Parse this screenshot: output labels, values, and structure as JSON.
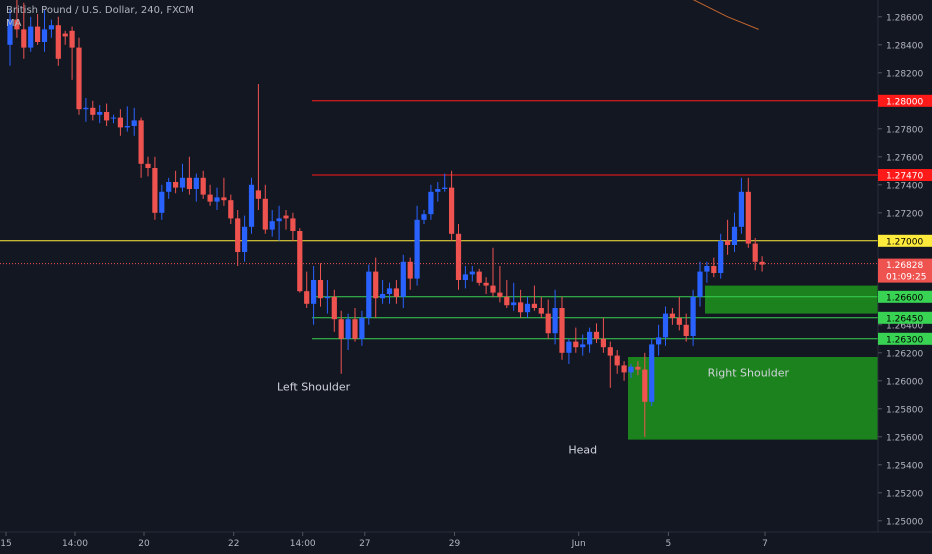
{
  "header": {
    "symbol_title": "British Pound / U.S. Dollar, 240, FXCM",
    "indicator": "MA"
  },
  "colors": {
    "background": "#131722",
    "up": "#2962ff",
    "down": "#ef5350",
    "resistance": "#ff1a1a",
    "pivot": "#ffeb3b",
    "support": "#39d353",
    "zone": "#1e8e1e",
    "ma": "#c0642d",
    "price_badge": "#ef5350",
    "axis_text": "#b2b5be"
  },
  "chart_data": {
    "type": "candlestick",
    "title": "British Pound / U.S. Dollar, 240, FXCM",
    "ylim": [
      1.2492,
      1.2872
    ],
    "y_ticks": [
      "1.28600",
      "1.28400",
      "1.28200",
      "1.28000",
      "1.27800",
      "1.27600",
      "1.27400",
      "1.27200",
      "1.27000",
      "1.26800",
      "1.26600",
      "1.26450",
      "1.26400",
      "1.26300",
      "1.26200",
      "1.26000",
      "1.25800",
      "1.25600",
      "1.25400",
      "1.25200",
      "1.25000"
    ],
    "x_ticks": [
      "15",
      "14:00",
      "20",
      "22",
      "14:00",
      "27",
      "29",
      "Jun",
      "5",
      "7"
    ],
    "x_tick_bars": [
      0,
      10,
      20,
      33,
      43,
      52,
      65,
      83,
      96,
      110
    ],
    "bar_count": 111,
    "candles": [
      [
        1.284,
        1.2865,
        1.2825,
        1.2858
      ],
      [
        1.2858,
        1.2875,
        1.2845,
        1.2851
      ],
      [
        1.2851,
        1.287,
        1.283,
        1.2838
      ],
      [
        1.2838,
        1.286,
        1.2835,
        1.2853
      ],
      [
        1.2853,
        1.2862,
        1.284,
        1.2842
      ],
      [
        1.2842,
        1.2865,
        1.2835,
        1.2851
      ],
      [
        1.2851,
        1.2858,
        1.2845,
        1.2854
      ],
      [
        1.2854,
        1.286,
        1.2825,
        1.283
      ],
      [
        1.2848,
        1.285,
        1.284,
        1.2846
      ],
      [
        1.285,
        1.2853,
        1.2815,
        1.2838
      ],
      [
        1.2838,
        1.2845,
        1.279,
        1.2794
      ],
      [
        1.2794,
        1.2802,
        1.2785,
        1.2795
      ],
      [
        1.2795,
        1.28,
        1.2786,
        1.279
      ],
      [
        1.279,
        1.2797,
        1.2784,
        1.2792
      ],
      [
        1.2792,
        1.2798,
        1.2782,
        1.2786
      ],
      [
        1.2788,
        1.279,
        1.2784,
        1.2788
      ],
      [
        1.2788,
        1.2794,
        1.2775,
        1.2781
      ],
      [
        1.2781,
        1.2796,
        1.2778,
        1.2782
      ],
      [
        1.2782,
        1.2795,
        1.2775,
        1.2786
      ],
      [
        1.2786,
        1.2788,
        1.2745,
        1.2755
      ],
      [
        1.2755,
        1.276,
        1.2746,
        1.2752
      ],
      [
        1.2752,
        1.276,
        1.2715,
        1.272
      ],
      [
        1.272,
        1.274,
        1.2715,
        1.2735
      ],
      [
        1.2735,
        1.2745,
        1.273,
        1.2742
      ],
      [
        1.2742,
        1.275,
        1.2734,
        1.2738
      ],
      [
        1.2738,
        1.2755,
        1.2735,
        1.2745
      ],
      [
        1.2745,
        1.276,
        1.2733,
        1.2737
      ],
      [
        1.2737,
        1.2748,
        1.2728,
        1.2745
      ],
      [
        1.2745,
        1.275,
        1.273,
        1.2733
      ],
      [
        1.2733,
        1.274,
        1.2725,
        1.2728
      ],
      [
        1.2728,
        1.2738,
        1.2722,
        1.2731
      ],
      [
        1.2731,
        1.2745,
        1.2725,
        1.2729
      ],
      [
        1.2729,
        1.2733,
        1.2712,
        1.2716
      ],
      [
        1.2716,
        1.2722,
        1.2682,
        1.2692
      ],
      [
        1.2692,
        1.2718,
        1.2685,
        1.271
      ],
      [
        1.271,
        1.2745,
        1.2705,
        1.274
      ],
      [
        1.2736,
        1.2812,
        1.2722,
        1.273
      ],
      [
        1.273,
        1.274,
        1.2705,
        1.2708
      ],
      [
        1.2708,
        1.2722,
        1.2703,
        1.2714
      ],
      [
        1.2714,
        1.2725,
        1.27,
        1.2716
      ],
      [
        1.2718,
        1.2722,
        1.2708,
        1.2716
      ],
      [
        1.2716,
        1.272,
        1.27,
        1.2707
      ],
      [
        1.2707,
        1.2709,
        1.2663,
        1.2664
      ],
      [
        1.2664,
        1.2678,
        1.2652,
        1.2655
      ],
      [
        1.2655,
        1.2682,
        1.264,
        1.2672
      ],
      [
        1.2672,
        1.2684,
        1.2653,
        1.2659
      ],
      [
        1.2659,
        1.2672,
        1.2648,
        1.266
      ],
      [
        1.266,
        1.2665,
        1.2635,
        1.2644
      ],
      [
        1.2644,
        1.265,
        1.2605,
        1.263
      ],
      [
        1.263,
        1.2648,
        1.2622,
        1.2644
      ],
      [
        1.2644,
        1.2652,
        1.2628,
        1.263
      ],
      [
        1.263,
        1.265,
        1.2625,
        1.2645
      ],
      [
        1.2645,
        1.2683,
        1.264,
        1.2678
      ],
      [
        1.2678,
        1.2688,
        1.2645,
        1.2659
      ],
      [
        1.2659,
        1.2672,
        1.2655,
        1.2662
      ],
      [
        1.2662,
        1.267,
        1.2655,
        1.2666
      ],
      [
        1.2666,
        1.2672,
        1.2655,
        1.266
      ],
      [
        1.266,
        1.269,
        1.2652,
        1.2685
      ],
      [
        1.2685,
        1.2688,
        1.2665,
        1.2673
      ],
      [
        1.2673,
        1.2725,
        1.2668,
        1.2715
      ],
      [
        1.2715,
        1.2722,
        1.2712,
        1.2719
      ],
      [
        1.2719,
        1.274,
        1.2715,
        1.2735
      ],
      [
        1.2735,
        1.2742,
        1.2728,
        1.2737
      ],
      [
        1.2737,
        1.2748,
        1.2735,
        1.2738
      ],
      [
        1.2738,
        1.275,
        1.27,
        1.2705
      ],
      [
        1.2705,
        1.2712,
        1.2665,
        1.2672
      ],
      [
        1.2672,
        1.2682,
        1.2666,
        1.2676
      ],
      [
        1.2676,
        1.2682,
        1.2671,
        1.2678
      ],
      [
        1.2678,
        1.268,
        1.2668,
        1.267
      ],
      [
        1.267,
        1.2674,
        1.2662,
        1.2668
      ],
      [
        1.2668,
        1.2695,
        1.266,
        1.2663
      ],
      [
        1.2663,
        1.2682,
        1.2656,
        1.266
      ],
      [
        1.266,
        1.2672,
        1.2652,
        1.2654
      ],
      [
        1.2654,
        1.267,
        1.265,
        1.2656
      ],
      [
        1.2656,
        1.2665,
        1.2645,
        1.2649
      ],
      [
        1.2649,
        1.266,
        1.2645,
        1.2655
      ],
      [
        1.2655,
        1.2668,
        1.265,
        1.2652
      ],
      [
        1.2652,
        1.266,
        1.2645,
        1.2648
      ],
      [
        1.2648,
        1.2658,
        1.263,
        1.2634
      ],
      [
        1.2634,
        1.2665,
        1.2626,
        1.2652
      ],
      [
        1.2652,
        1.266,
        1.2615,
        1.262
      ],
      [
        1.262,
        1.263,
        1.2612,
        1.2628
      ],
      [
        1.2628,
        1.2638,
        1.262,
        1.2624
      ],
      [
        1.2624,
        1.2633,
        1.2618,
        1.2626
      ],
      [
        1.2626,
        1.2638,
        1.262,
        1.2635
      ],
      [
        1.2635,
        1.2641,
        1.2627,
        1.263
      ],
      [
        1.263,
        1.2645,
        1.262,
        1.2624
      ],
      [
        1.2624,
        1.2628,
        1.2595,
        1.2618
      ],
      [
        1.2618,
        1.2622,
        1.2605,
        1.2611
      ],
      [
        1.2611,
        1.2614,
        1.26,
        1.2606
      ],
      [
        1.2606,
        1.2612,
        1.2602,
        1.261
      ],
      [
        1.261,
        1.2614,
        1.2604,
        1.2608
      ],
      [
        1.2608,
        1.262,
        1.256,
        1.2585
      ],
      [
        1.2585,
        1.263,
        1.2582,
        1.2626
      ],
      [
        1.2626,
        1.264,
        1.2618,
        1.2631
      ],
      [
        1.2631,
        1.2653,
        1.2625,
        1.2648
      ],
      [
        1.2648,
        1.2652,
        1.264,
        1.2645
      ],
      [
        1.2645,
        1.266,
        1.2636,
        1.264
      ],
      [
        1.264,
        1.2648,
        1.2628,
        1.2632
      ],
      [
        1.2632,
        1.2665,
        1.2625,
        1.266
      ],
      [
        1.266,
        1.2685,
        1.2653,
        1.2678
      ],
      [
        1.2678,
        1.2685,
        1.267,
        1.2682
      ],
      [
        1.2682,
        1.2688,
        1.2674,
        1.2677
      ],
      [
        1.2677,
        1.2705,
        1.2673,
        1.27
      ],
      [
        1.27,
        1.2715,
        1.269,
        1.2697
      ],
      [
        1.2697,
        1.272,
        1.2692,
        1.271
      ],
      [
        1.271,
        1.2745,
        1.2705,
        1.2735
      ],
      [
        1.2735,
        1.2745,
        1.2695,
        1.2698
      ],
      [
        1.2698,
        1.2702,
        1.2679,
        1.2685
      ],
      [
        1.2685,
        1.2689,
        1.2678,
        1.2683
      ]
    ],
    "levels": [
      {
        "price": 1.28,
        "label": "1.28000",
        "role": "resistance"
      },
      {
        "price": 1.2747,
        "label": "1.27470",
        "role": "resistance"
      },
      {
        "price": 1.27,
        "label": "1.27000",
        "role": "pivot"
      },
      {
        "price": 1.266,
        "label": "1.26600",
        "role": "support"
      },
      {
        "price": 1.2645,
        "label": "1.26450",
        "role": "support"
      },
      {
        "price": 1.263,
        "label": "1.26300",
        "role": "support"
      }
    ],
    "zones": [
      {
        "from": 1.2648,
        "to": 1.2668,
        "name": "upper-zone"
      },
      {
        "from": 1.2558,
        "to": 1.2617,
        "name": "lower-zone"
      }
    ],
    "annotations": [
      {
        "text": "Left Shoulder",
        "bar": 44,
        "price": 1.2593
      },
      {
        "text": "Head",
        "bar": 83,
        "price": 1.2548
      },
      {
        "text": "Right Shoulder",
        "bar": 107,
        "price": 1.2603
      }
    ],
    "last_price": {
      "value": "1.26828",
      "countdown": "01:09:25",
      "price": 1.2683
    },
    "ma_line": [
      {
        "bar": 97.5,
        "price": 1.2876
      },
      {
        "bar": 104,
        "price": 1.286
      },
      {
        "bar": 108.5,
        "price": 1.2851
      }
    ]
  }
}
